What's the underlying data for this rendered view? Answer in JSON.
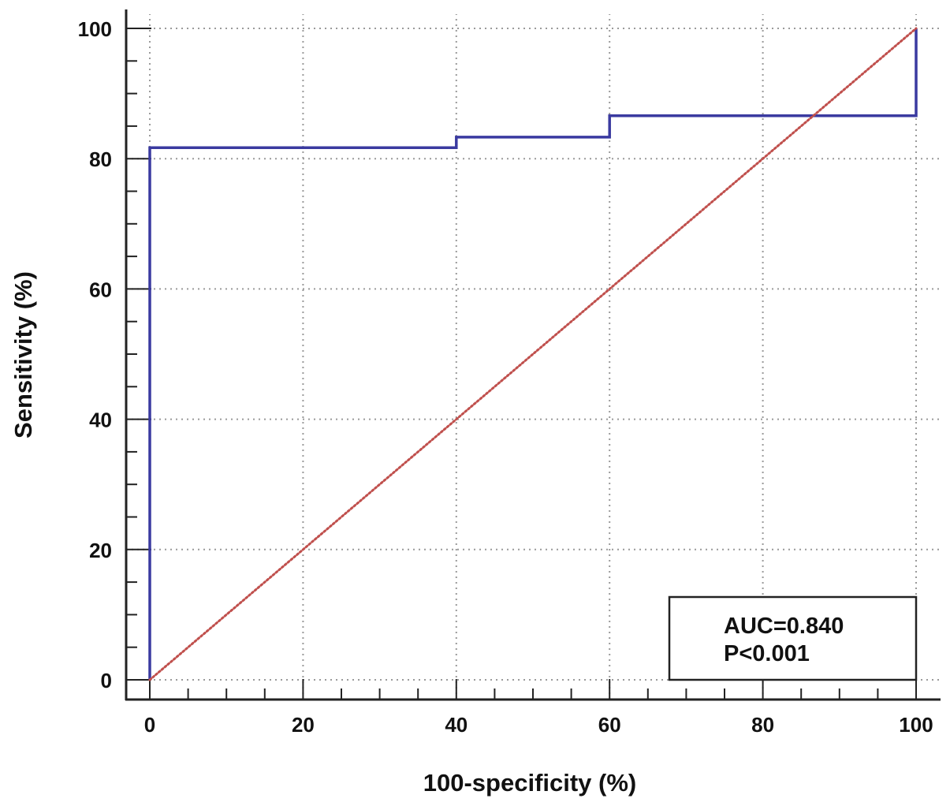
{
  "chart_data": {
    "type": "line",
    "title": "",
    "xlabel": "100-specificity (%)",
    "ylabel": "Sensitivity (%)",
    "xlim": [
      0,
      100
    ],
    "ylim": [
      0,
      100
    ],
    "x_ticks": [
      "0",
      "20",
      "40",
      "60",
      "80",
      "100"
    ],
    "y_ticks": [
      "0",
      "20",
      "40",
      "60",
      "80",
      "100"
    ],
    "grid": true,
    "series": [
      {
        "name": "",
        "style": "step",
        "color": "#3a3aa0",
        "points": [
          [
            0,
            0
          ],
          [
            0,
            81.7
          ],
          [
            40,
            81.7
          ],
          [
            40,
            83.3
          ],
          [
            60,
            83.3
          ],
          [
            60,
            86.6
          ],
          [
            100,
            86.6
          ],
          [
            100,
            100
          ]
        ]
      },
      {
        "name": "",
        "style": "dotted",
        "color": "#c0504d",
        "points": [
          [
            0,
            0
          ],
          [
            100,
            100
          ]
        ]
      }
    ],
    "annotation": {
      "lines": [
        "AUC=0.840",
        "P<0.001"
      ],
      "placement": "bottom-right"
    }
  }
}
